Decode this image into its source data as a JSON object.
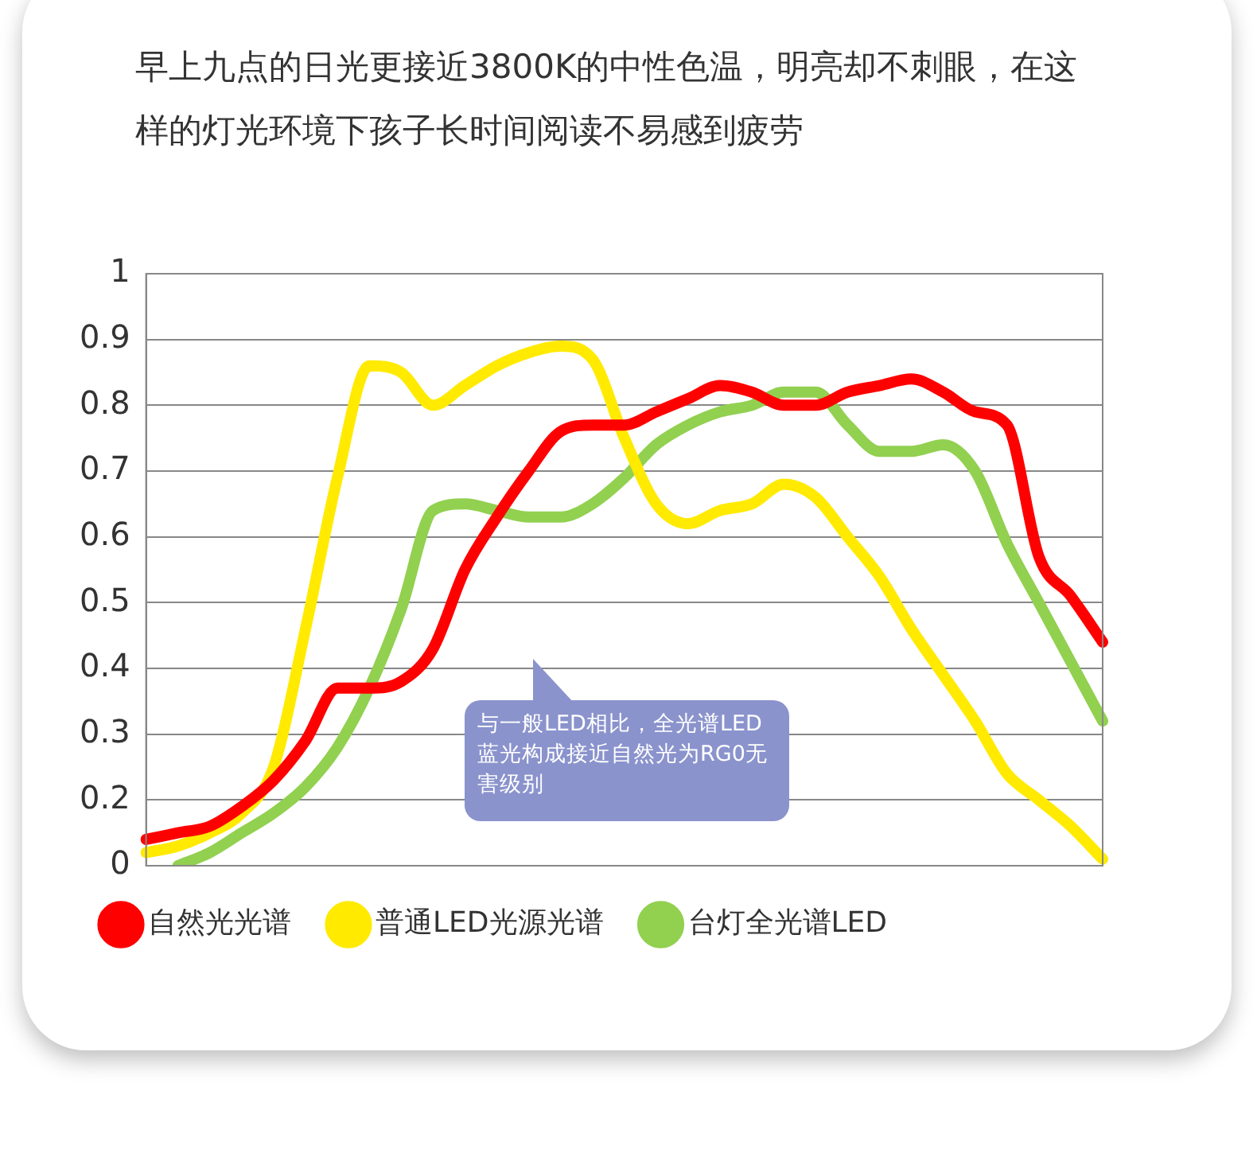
{
  "chart_data": {
    "type": "line",
    "title": "早上九点的日光更接近3800K的中性色温，明亮却不刺眼，在这样的灯光环境下孩子长时间阅读不易感到疲劳",
    "categories": [
      null,
      null,
      null,
      null,
      null,
      null,
      null,
      null,
      null,
      null,
      null,
      null,
      null,
      null,
      null,
      null,
      null,
      null,
      null,
      null,
      null,
      null,
      null,
      null,
      null,
      null,
      null,
      null,
      null,
      null,
      null
    ],
    "series": [
      {
        "name": "自然光光谱",
        "color": "#ff0000",
        "values": [
          0.14,
          0.15,
          0.16,
          0.19,
          0.23,
          0.29,
          0.37,
          0.37,
          0.38,
          0.43,
          0.55,
          0.63,
          0.7,
          0.76,
          0.77,
          0.77,
          0.79,
          0.81,
          0.83,
          0.82,
          0.8,
          0.8,
          0.82,
          0.83,
          0.84,
          0.82,
          0.79,
          0.77,
          0.57,
          0.51,
          0.44
        ]
      },
      {
        "name": "普通LED光源光谱",
        "color": "#ffea00",
        "values": [
          0.12,
          0.13,
          0.15,
          0.18,
          0.25,
          0.46,
          0.69,
          0.86,
          0.85,
          0.8,
          0.83,
          0.86,
          0.88,
          0.89,
          0.87,
          0.75,
          0.65,
          0.62,
          0.64,
          0.65,
          0.68,
          0.66,
          0.6,
          0.54,
          0.46,
          0.39,
          0.32,
          0.24,
          0.2,
          0.16,
          0.11
        ]
      },
      {
        "name": "台灯全光谱LED",
        "color": "#92d050",
        "values": [
          null,
          0.1,
          0.12,
          0.15,
          0.18,
          0.22,
          0.28,
          0.37,
          0.49,
          0.64,
          0.65,
          0.64,
          0.63,
          0.63,
          0.65,
          0.69,
          0.74,
          0.77,
          0.79,
          0.8,
          0.82,
          0.82,
          0.77,
          0.73,
          0.73,
          0.74,
          0.7,
          0.59,
          0.5,
          0.41,
          0.32
        ]
      }
    ],
    "ylim": [
      0.1,
      1
    ],
    "yticks": [
      {
        "value": 0.1,
        "label": "0"
      },
      0.2,
      0.3,
      0.4,
      0.5,
      0.6,
      0.7,
      0.8,
      0.9,
      1
    ],
    "tick_labels": "y",
    "grid": "y",
    "legend": "bottom",
    "marker": "none",
    "line_style": "solid",
    "annotations": [
      "与一般LED相比，全光谱LED蓝光构成接近自然光为RG0无害级别"
    ]
  }
}
